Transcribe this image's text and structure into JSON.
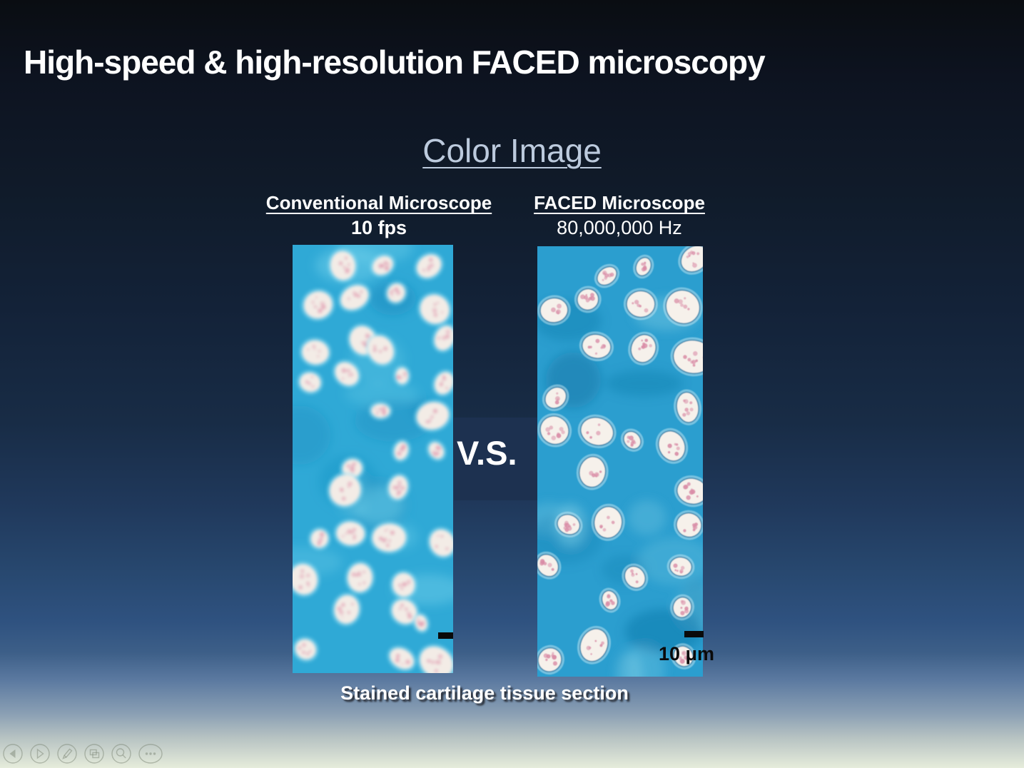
{
  "slide": {
    "title": "High-speed & high-resolution FACED microscopy",
    "heading": "Color Image",
    "columns": [
      {
        "label": "Conventional Microscope",
        "rate": "10 fps"
      },
      {
        "label": "FACED Microscope",
        "rate": "80,000,000 Hz"
      }
    ],
    "versus": "V.S.",
    "scale_label": "10 μm",
    "caption": "Stained cartilage tissue section"
  },
  "colors": {
    "title_text": "#ffffff",
    "heading_text": "#bccadd",
    "versus_panel": "#1d3150",
    "scale_bar": "#0a0a0a",
    "left_image": {
      "bg": "#2fa9d6",
      "tex_light": "#7fd9ef",
      "tex_dark": "#1487ba",
      "nucleus": "#f3ece6",
      "speckle": "#e2a2b5",
      "halo": "#9ee0f2"
    },
    "right_image": {
      "bg": "#2b9ecf",
      "tex_light": "#8fd8ea",
      "tex_dark": "#0f6f9f",
      "nucleus": "#f6f1eb",
      "speckle": "#d98ca6",
      "halo": "#c4e8f4",
      "stroke": "#0e5f8f"
    }
  },
  "toolbar": {
    "buttons": [
      "previous-slide",
      "next-slide",
      "pen-tools",
      "see-all-slides",
      "zoom-slide",
      "more-options"
    ]
  }
}
